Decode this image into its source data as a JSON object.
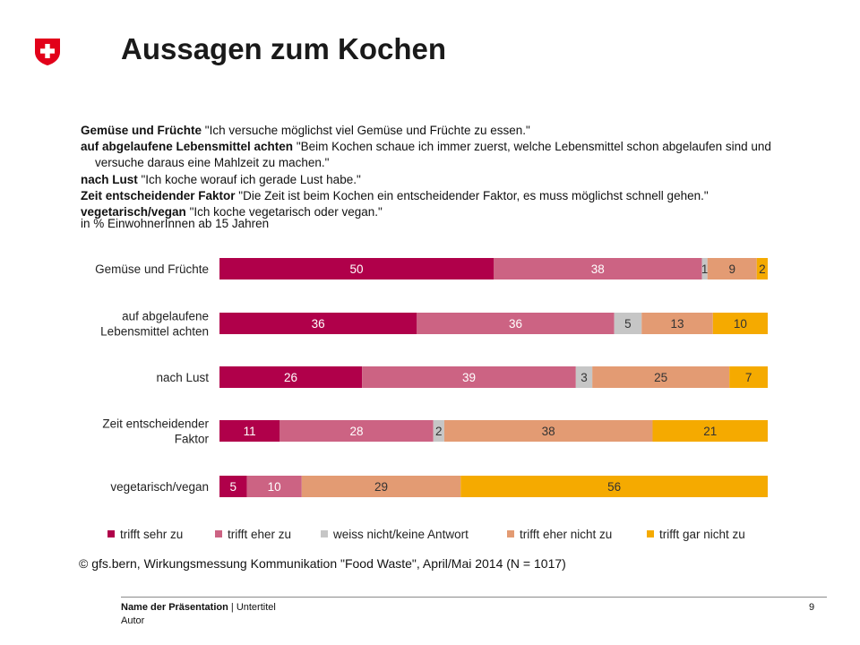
{
  "slide": {
    "title": "Aussagen zum Kochen",
    "footer_title": "Name der Präsentation",
    "footer_separator": " | ",
    "footer_subtitle": "Untertitel",
    "footer_author": "Autor",
    "page_number": "9",
    "logo_icon": "swiss-cross-shield-icon"
  },
  "definitions": [
    {
      "term": "Gemüse und Früchte",
      "text": " \"Ich versuche möglichst viel Gemüse und Früchte zu essen.\""
    },
    {
      "term": "auf abgelaufene Lebensmittel achten",
      "text": " \"Beim Kochen schaue ich immer zuerst, welche Lebensmittel schon abgelaufen sind und",
      "continuation": "versuche daraus eine Mahlzeit zu machen.\""
    },
    {
      "term": "nach Lust",
      "text": " \"Ich koche worauf ich gerade Lust habe.\""
    },
    {
      "term": "Zeit entscheidender Faktor",
      "text": " \"Die Zeit ist beim Kochen ein entscheidender Faktor, es muss möglichst schnell gehen.\""
    },
    {
      "term": "vegetarisch/vegan",
      "text": " \"Ich koche vegetarisch oder vegan.\""
    }
  ],
  "unit_note": "in % EinwohnerInnen ab 15 Jahren",
  "source": "© gfs.bern, Wirkungsmessung Kommunikation \"Food Waste\", April/Mai 2014 (N = 1017)",
  "chart_data": {
    "type": "bar",
    "orientation": "horizontal",
    "stacked": true,
    "categories": [
      [
        "Gemüse und Früchte"
      ],
      [
        "auf abgelaufene",
        "Lebensmittel achten"
      ],
      [
        "nach Lust"
      ],
      [
        "Zeit entscheidender",
        "Faktor"
      ],
      [
        "vegetarisch/vegan"
      ]
    ],
    "series": [
      {
        "name": "trifft sehr zu",
        "color": "#b0004a",
        "label_color": "#ffffff",
        "values": [
          50,
          36,
          26,
          11,
          5
        ]
      },
      {
        "name": "trifft eher zu",
        "color": "#cc6383",
        "label_color": "#ffffff",
        "values": [
          38,
          36,
          39,
          28,
          10
        ]
      },
      {
        "name": "weiss nicht/keine Antwort",
        "color": "#c6c6c6",
        "label_color": "#333333",
        "values": [
          1,
          5,
          3,
          2,
          0
        ]
      },
      {
        "name": "trifft eher nicht zu",
        "color": "#e39b73",
        "label_color": "#333333",
        "values": [
          9,
          13,
          25,
          38,
          29
        ]
      },
      {
        "name": "trifft gar nicht zu",
        "color": "#f5aa00",
        "label_color": "#333333",
        "values": [
          2,
          10,
          7,
          21,
          56
        ]
      }
    ],
    "xlim": [
      0,
      100
    ],
    "grid": false,
    "legend": "bottom"
  }
}
